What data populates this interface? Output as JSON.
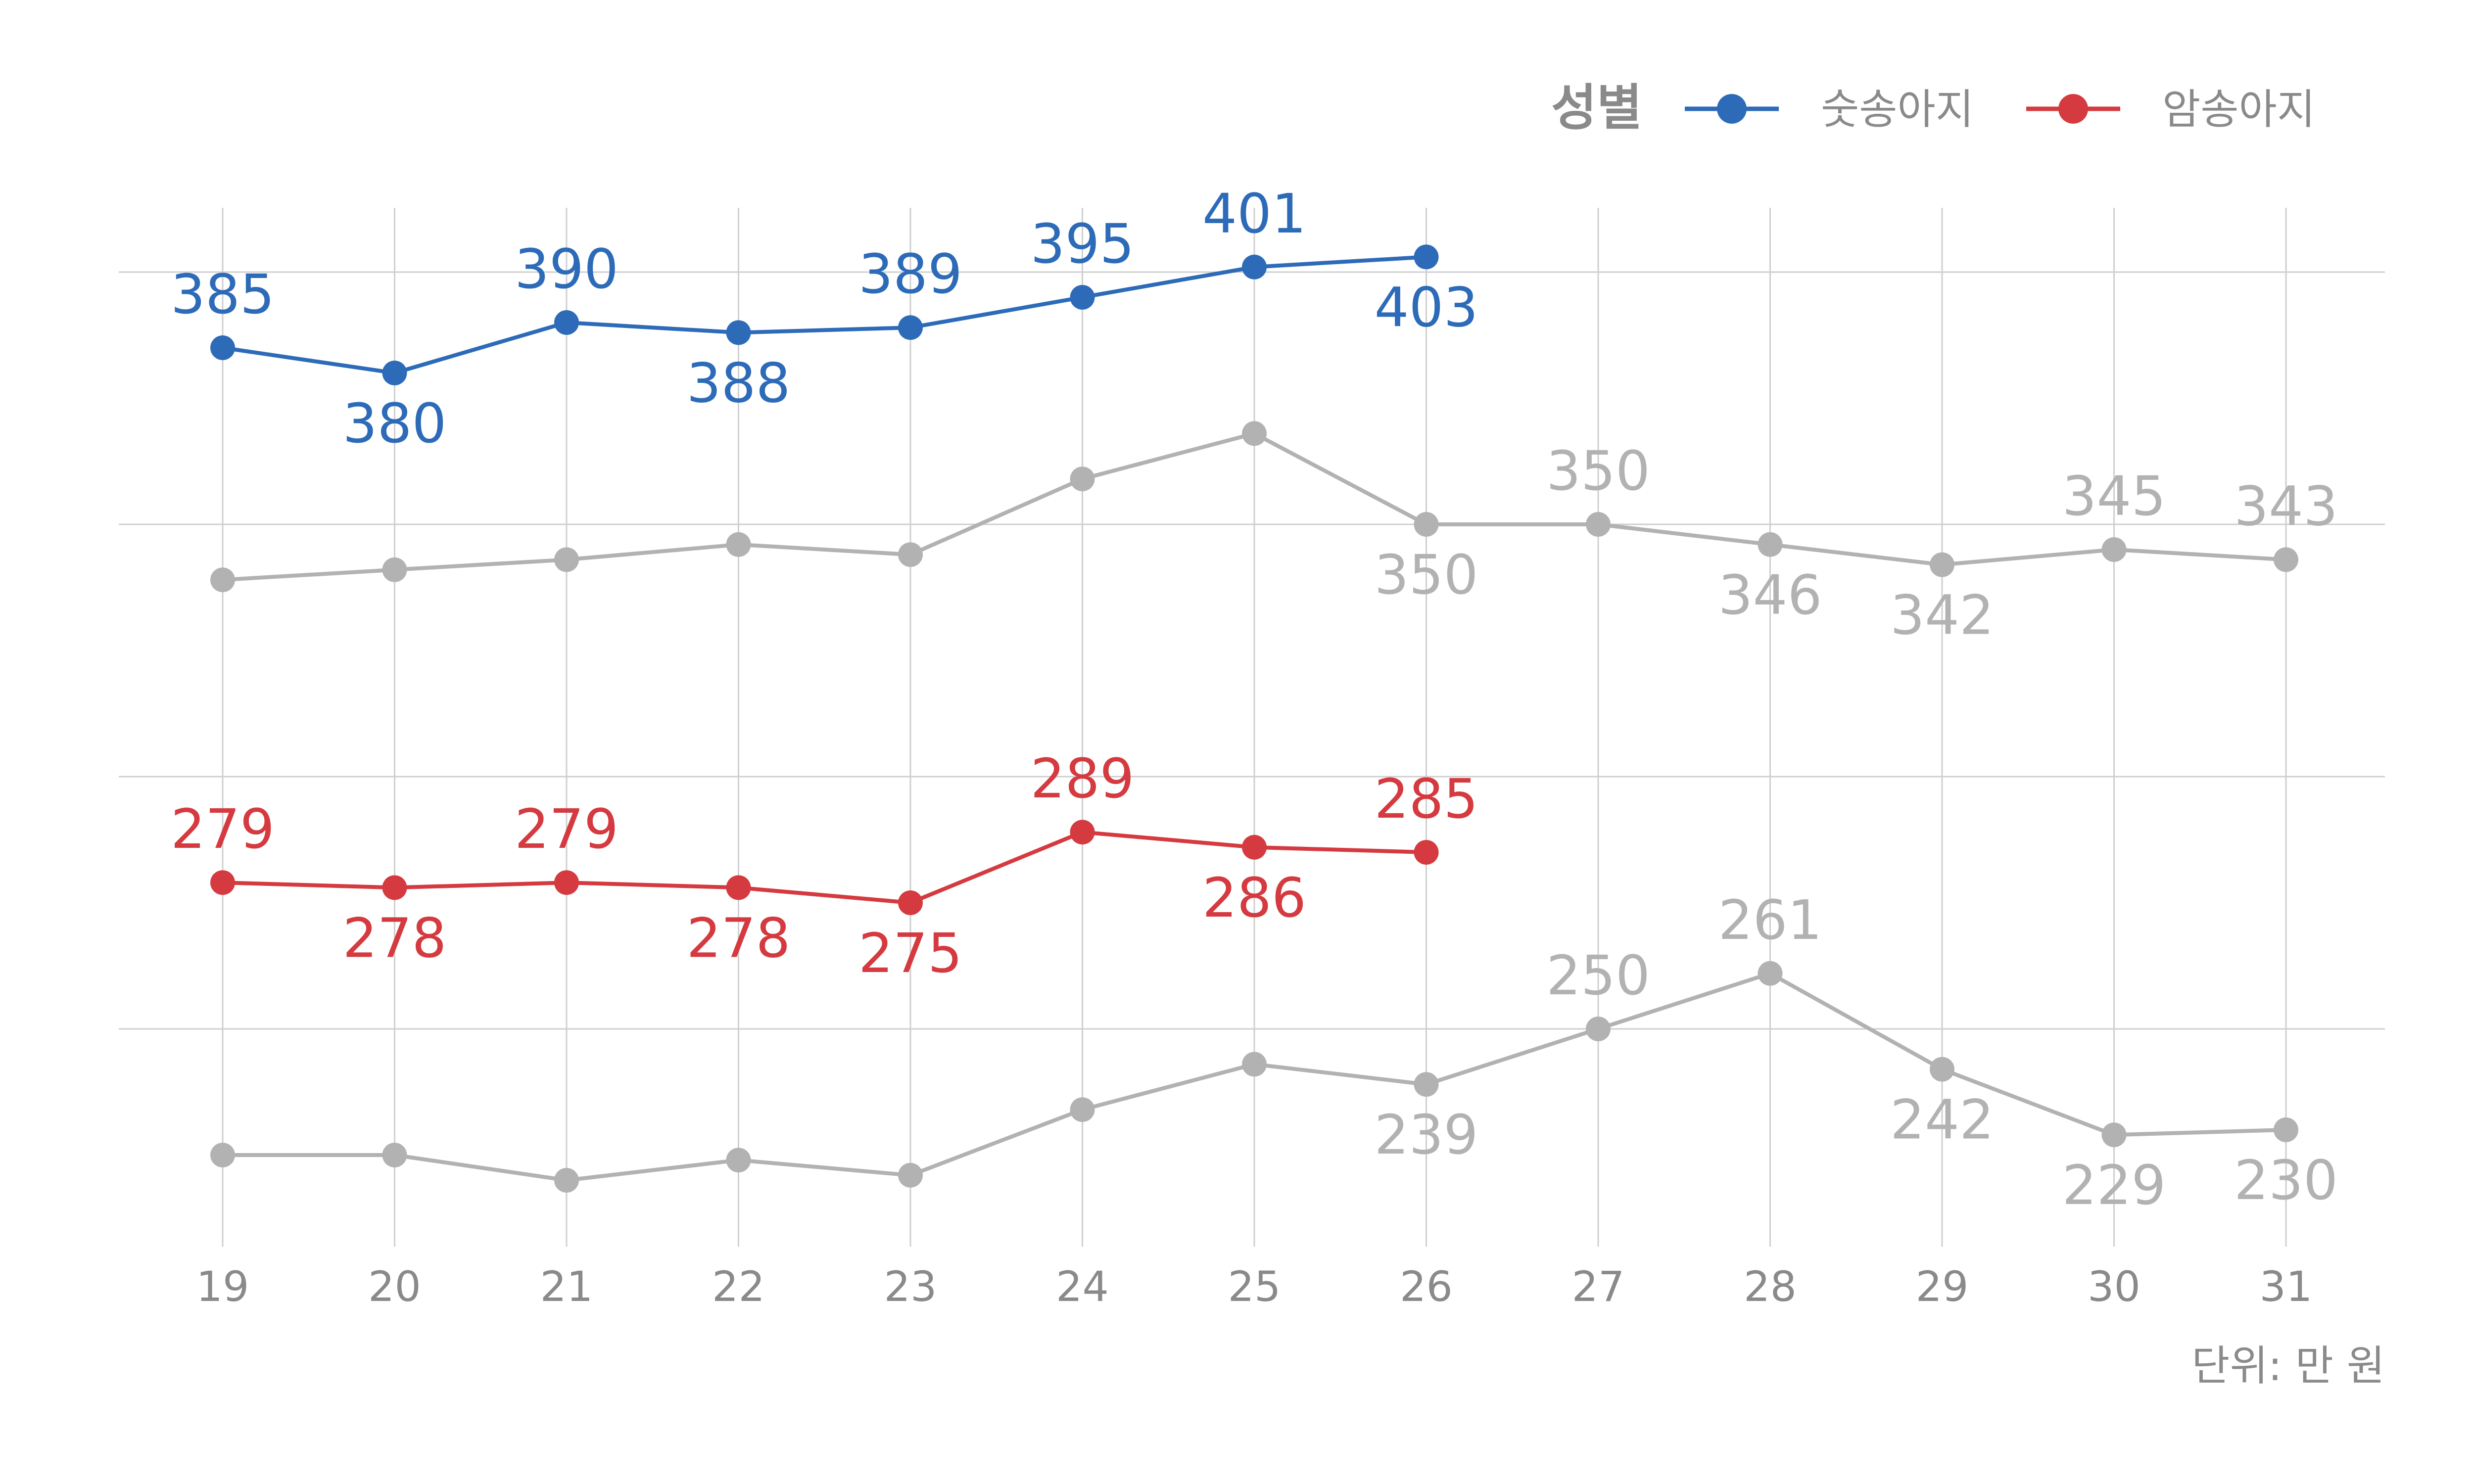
{
  "chart_data": {
    "type": "line",
    "title": "",
    "xlabel": "",
    "ylabel": "",
    "unit_note": "단위: 만 원",
    "x": [
      19,
      20,
      21,
      22,
      23,
      24,
      25,
      26,
      27,
      28,
      29,
      30,
      31
    ],
    "legend": {
      "title": "성별",
      "placement": "top-right",
      "entries": [
        {
          "name": "숫송아지",
          "color": "#2d6bb8"
        },
        {
          "name": "암송아지",
          "color": "#d43a3f"
        }
      ]
    },
    "grid": true,
    "ylim": [
      195,
      415
    ],
    "series": [
      {
        "name": "숫송아지",
        "color": "#2d6bb8",
        "x": [
          19,
          20,
          21,
          22,
          23,
          24,
          25,
          26
        ],
        "values": [
          385,
          380,
          390,
          388,
          389,
          395,
          401,
          403
        ],
        "labels": [
          "385",
          "380",
          "390",
          "388",
          "389",
          "395",
          "401",
          "403"
        ]
      },
      {
        "name": "",
        "color": "#b2b2b2",
        "x": [
          19,
          20,
          21,
          22,
          23,
          24,
          25,
          26,
          27,
          28,
          29,
          30,
          31
        ],
        "values": [
          339,
          341,
          343,
          346,
          344,
          359,
          368,
          350,
          350,
          346,
          342,
          345,
          343
        ],
        "labels": [
          "",
          "",
          "",
          "",
          "",
          "",
          "",
          "350",
          "350",
          "346",
          "342",
          "345",
          "343"
        ]
      },
      {
        "name": "암송아지",
        "color": "#d43a3f",
        "x": [
          19,
          20,
          21,
          22,
          23,
          24,
          25,
          26
        ],
        "values": [
          279,
          278,
          279,
          278,
          275,
          289,
          286,
          285
        ],
        "labels": [
          "279",
          "278",
          "279",
          "278",
          "275",
          "289",
          "286",
          "285"
        ]
      },
      {
        "name": "",
        "color": "#b2b2b2",
        "x": [
          19,
          20,
          21,
          22,
          23,
          24,
          25,
          26,
          27,
          28,
          29,
          30,
          31
        ],
        "values": [
          225,
          225,
          220,
          224,
          221,
          234,
          243,
          239,
          250,
          261,
          242,
          229,
          230
        ],
        "labels": [
          "",
          "",
          "",
          "",
          "",
          "",
          "",
          "239",
          "250",
          "261",
          "242",
          "229",
          "230"
        ]
      }
    ]
  }
}
